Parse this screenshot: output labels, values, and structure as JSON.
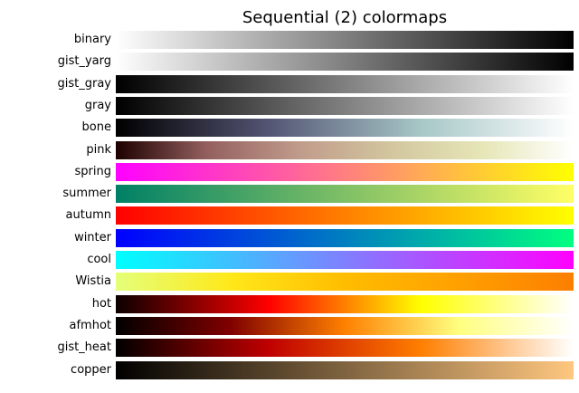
{
  "chart_data": {
    "type": "colormap_strips",
    "title": "Sequential (2) colormaps",
    "colormaps": [
      {
        "name": "binary",
        "colors": [
          "#ffffff",
          "#000000"
        ]
      },
      {
        "name": "gist_yarg",
        "colors": [
          "#ffffff",
          "#000000"
        ]
      },
      {
        "name": "gist_gray",
        "colors": [
          "#000000",
          "#ffffff"
        ]
      },
      {
        "name": "gray",
        "colors": [
          "#000000",
          "#ffffff"
        ]
      },
      {
        "name": "bone",
        "colors": [
          "#000000",
          "#545474",
          "#a7c7c7",
          "#ffffff"
        ]
      },
      {
        "name": "pink",
        "colors": [
          "#1e0000",
          "#94605f",
          "#c09b8b",
          "#d2c69e",
          "#e6e6b7",
          "#ffffff"
        ]
      },
      {
        "name": "spring",
        "colors": [
          "#ff00ff",
          "#ffff00"
        ]
      },
      {
        "name": "summer",
        "colors": [
          "#008066",
          "#ffff66"
        ]
      },
      {
        "name": "autumn",
        "colors": [
          "#ff0000",
          "#ffff00"
        ]
      },
      {
        "name": "winter",
        "colors": [
          "#0000ff",
          "#00ff80"
        ]
      },
      {
        "name": "cool",
        "colors": [
          "#00ffff",
          "#ff00ff"
        ]
      },
      {
        "name": "Wistia",
        "colors": [
          "#e4ff7a",
          "#ffe81a",
          "#ffbd00",
          "#ffa000",
          "#fc7f00"
        ]
      },
      {
        "name": "hot",
        "colors": [
          "#0b0000",
          "#ff0000",
          "#ffff00",
          "#ffffff"
        ]
      },
      {
        "name": "afmhot",
        "colors": [
          "#000000",
          "#800000",
          "#ff8000",
          "#ffff80",
          "#ffffff"
        ]
      },
      {
        "name": "gist_heat",
        "colors": [
          "#000000",
          "#bf0000",
          "#ff7f00",
          "#ffffff"
        ]
      },
      {
        "name": "copper",
        "colors": [
          "#000000",
          "#ffc77f"
        ]
      }
    ]
  }
}
